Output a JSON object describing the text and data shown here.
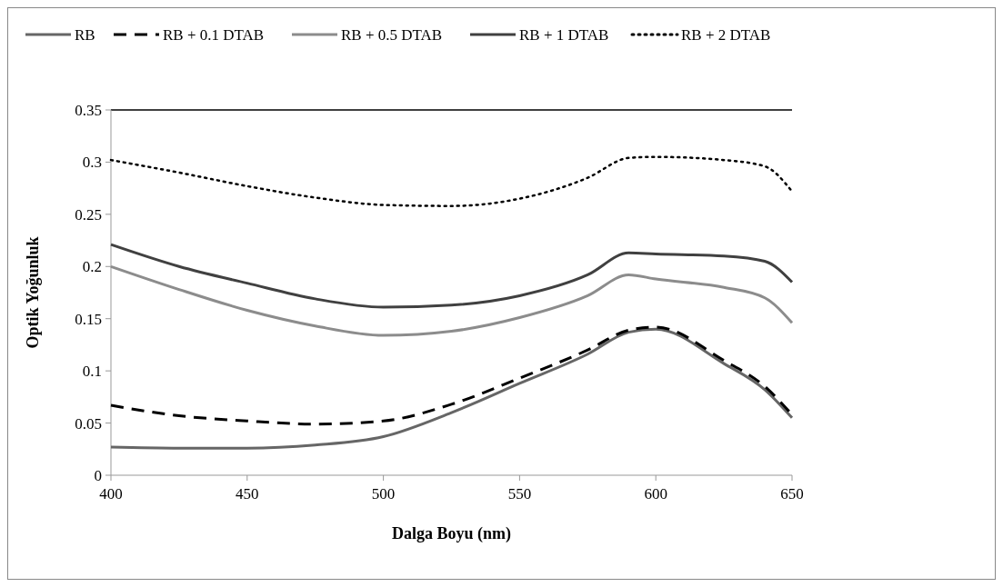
{
  "chart_data": {
    "type": "line",
    "xlabel": "Dalga Boyu (nm)",
    "ylabel": "Optik Yoğunluk",
    "xlim": [
      400,
      650
    ],
    "xticks": [
      400,
      450,
      500,
      550,
      600,
      650
    ],
    "ylim": [
      0,
      0.35
    ],
    "yticks": [
      0,
      0.05,
      0.1,
      0.15,
      0.2,
      0.25,
      0.3,
      0.35
    ],
    "grid": false,
    "legend": "top",
    "marker": "none",
    "x": [
      400,
      425,
      450,
      475,
      500,
      525,
      550,
      575,
      590,
      600,
      625,
      640,
      650
    ],
    "series": [
      {
        "name": "RB",
        "color": "#666666",
        "line_style": "solid",
        "values": [
          0.027,
          0.026,
          0.026,
          0.029,
          0.037,
          0.06,
          0.088,
          0.116,
          0.137,
          0.14,
          0.107,
          0.082,
          0.055
        ]
      },
      {
        "name": "RB + 0.1 DTAB",
        "color": "#000000",
        "line_style": "dashed",
        "values": [
          0.067,
          0.057,
          0.052,
          0.049,
          0.052,
          0.068,
          0.093,
          0.12,
          0.139,
          0.142,
          0.11,
          0.085,
          0.058
        ]
      },
      {
        "name": "RB + 0.5 DTAB",
        "color": "#8c8c8c",
        "line_style": "solid",
        "values": [
          0.2,
          0.178,
          0.158,
          0.143,
          0.134,
          0.138,
          0.151,
          0.172,
          0.192,
          0.188,
          0.18,
          0.17,
          0.146
        ]
      },
      {
        "name": "RB + 1 DTAB",
        "color": "#404040",
        "line_style": "solid",
        "values": [
          0.221,
          0.2,
          0.184,
          0.169,
          0.161,
          0.163,
          0.172,
          0.192,
          0.213,
          0.212,
          0.21,
          0.205,
          0.185
        ]
      },
      {
        "name": "RB + 2 DTAB",
        "color": "#000000",
        "line_style": "dotted",
        "values": [
          0.302,
          0.29,
          0.277,
          0.266,
          0.259,
          0.258,
          0.265,
          0.285,
          0.304,
          0.305,
          0.302,
          0.296,
          0.272
        ]
      }
    ]
  }
}
